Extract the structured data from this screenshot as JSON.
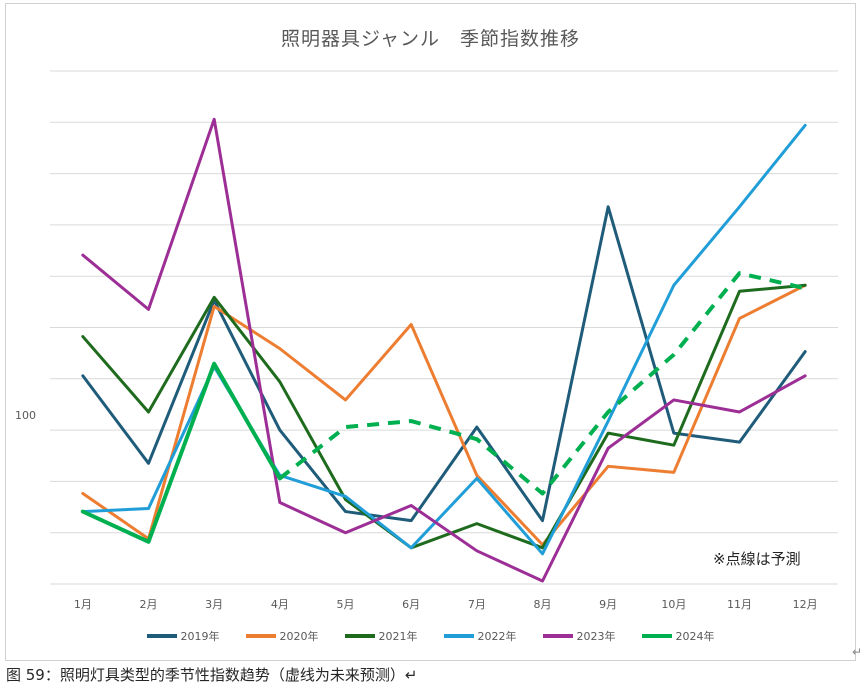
{
  "chart_data": {
    "type": "line",
    "title": "照明器具ジャンル　季節指数推移",
    "xlabel": "",
    "ylabel": "",
    "categories": [
      "1月",
      "2月",
      "3月",
      "4月",
      "5月",
      "6月",
      "7月",
      "8月",
      "9月",
      "10月",
      "11月",
      "12月"
    ],
    "y_tick_label": "100",
    "ylim": [
      72,
      157
    ],
    "grid": true,
    "legend_position": "bottom",
    "series": [
      {
        "name": "2019年",
        "color": "#1f5c7a",
        "dashed": false,
        "values": [
          106.5,
          92,
          119,
          97.5,
          84,
          82.5,
          98,
          82.5,
          134.5,
          97,
          95.5,
          110.5
        ]
      },
      {
        "name": "2020年",
        "color": "#ed7d31",
        "dashed": false,
        "values": [
          87,
          79.5,
          118,
          111,
          102.5,
          115,
          90,
          78.5,
          91.5,
          90.5,
          116,
          121.5
        ]
      },
      {
        "name": "2021年",
        "color": "#1e6b1e",
        "dashed": false,
        "values": [
          113,
          100.5,
          119.5,
          105.5,
          86,
          78,
          82,
          78,
          97,
          95,
          120.5,
          121.5
        ]
      },
      {
        "name": "2022年",
        "color": "#219ed8",
        "dashed": false,
        "values": [
          84,
          84.5,
          108,
          90,
          86.5,
          78,
          89.5,
          77,
          99,
          121.5,
          134.5,
          148
        ]
      },
      {
        "name": "2023年",
        "color": "#9c2e96",
        "dashed": false,
        "values": [
          126.5,
          117.5,
          149,
          85.5,
          80.5,
          85,
          77.5,
          72.5,
          94.5,
          102.5,
          100.5,
          106.5
        ]
      },
      {
        "name": "2024年",
        "color": "#00b050",
        "dashed": false,
        "values": [
          84,
          79,
          108.5,
          89.5,
          null,
          null,
          null,
          null,
          null,
          null,
          null,
          null
        ]
      },
      {
        "name": "",
        "color": "#00b050",
        "dashed": true,
        "values": [
          null,
          null,
          null,
          89.5,
          98,
          99,
          96,
          87,
          100.5,
          110,
          123.5,
          121
        ]
      }
    ]
  },
  "note": "※点線は予測",
  "caption": "图 59：照明灯具类型的季节性指数趋势（虚线为未来预测）↵",
  "right_mark": "↵"
}
